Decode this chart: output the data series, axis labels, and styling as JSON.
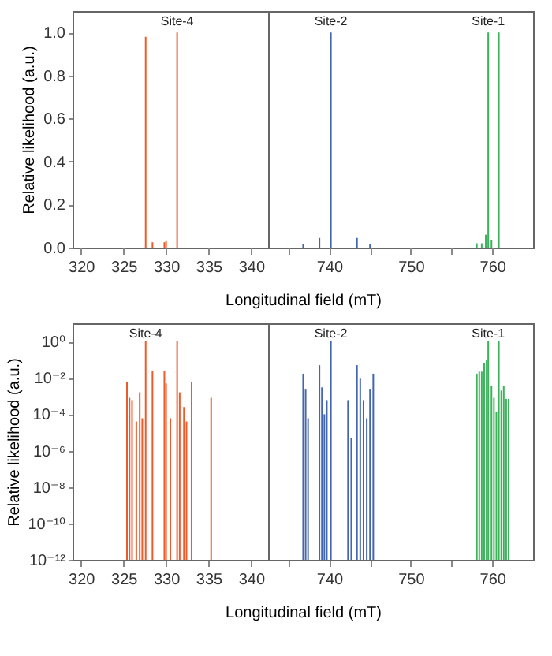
{
  "chart_data": [
    {
      "type": "bar",
      "ylabel": "Relative likelihood (a.u.)",
      "xlim": [
        319,
        342
      ],
      "xticks": [
        320,
        325,
        330,
        335,
        340
      ],
      "ylim": [
        0,
        1.1
      ],
      "yticks": [
        {
          "value": 0,
          "label": "0.0"
        },
        {
          "value": 0.2,
          "label": "0.2"
        },
        {
          "value": 0.4,
          "label": "0.4"
        },
        {
          "value": 0.6,
          "label": "0.6"
        },
        {
          "value": 0.8,
          "label": "0.8"
        },
        {
          "value": 1,
          "label": "1.0"
        }
      ],
      "grid": false,
      "series": [
        {
          "color": "#ee5b2b",
          "x": [
            327.6,
            328.4,
            329.8,
            330.0,
            331.3
          ],
          "values": [
            0.98,
            0.025,
            0.025,
            0.03,
            1.0
          ]
        }
      ],
      "annotations": [
        "Site-4"
      ]
    },
    {
      "type": "bar",
      "xlabel": "Longitudinal field (mT)",
      "xlim": [
        732.5,
        765
      ],
      "xticks": [
        {
          "value": 735,
          "label": null
        },
        740,
        {
          "value": 745,
          "label": null
        },
        750,
        {
          "value": 755,
          "label": null
        },
        760
      ],
      "ylim": [
        0,
        1.1
      ],
      "tick_labels": "x",
      "grid": false,
      "series": [
        {
          "color": "#4466b0",
          "x": [
            736.8,
            738.8,
            740.2,
            743.4,
            745.0
          ],
          "values": [
            0.017,
            0.045,
            1.0,
            0.045,
            0.015
          ]
        },
        {
          "color": "#3cb35a",
          "x": [
            758.1,
            758.7,
            759.2,
            759.5,
            759.9,
            760.8
          ],
          "values": [
            0.02,
            0.02,
            0.06,
            1.0,
            0.035,
            1.0
          ]
        }
      ],
      "annotations": [
        "Site-2",
        "Site-1"
      ]
    },
    {
      "type": "bar",
      "ylabel": "Relative likelihood (a.u.)",
      "log": true,
      "xlim": [
        319,
        342
      ],
      "xticks": [
        320,
        325,
        330,
        335,
        340
      ],
      "ylim": [
        1e-12,
        10
      ],
      "yticks": [
        {
          "value": 1e-12,
          "label": "10⁻¹²"
        },
        {
          "value": 1e-10,
          "label": "10⁻¹⁰"
        },
        {
          "value": 1e-08,
          "label": "10⁻⁸"
        },
        {
          "value": 1e-06,
          "label": "10⁻⁶"
        },
        {
          "value": 0.0001,
          "label": "10⁻⁴"
        },
        {
          "value": 0.01,
          "label": "10⁻²"
        },
        {
          "value": 1,
          "label": "10⁰"
        }
      ],
      "grid": false,
      "series": [
        {
          "color": "#ee5b2b",
          "x": [
            325.4,
            325.7,
            326.0,
            326.5,
            326.9,
            327.2,
            327.6,
            328.4,
            329.8,
            330.0,
            330.5,
            331.3,
            331.6,
            332.1,
            332.4,
            333.0,
            335.3
          ],
          "values": [
            0.006,
            0.0008,
            0.0006,
            4e-05,
            0.0016,
            6e-05,
            1,
            0.025,
            0.025,
            0.005,
            6e-05,
            1,
            0.0016,
            0.00025,
            4e-05,
            0.006,
            0.0008
          ]
        }
      ],
      "annotations": [
        "Site-4"
      ]
    },
    {
      "type": "bar",
      "xlabel": "Longitudinal field (mT)",
      "log": true,
      "xlim": [
        732.5,
        765
      ],
      "xticks": [
        {
          "value": 735,
          "label": null
        },
        740,
        {
          "value": 745,
          "label": null
        },
        750,
        {
          "value": 755,
          "label": null
        },
        760
      ],
      "ylim": [
        1e-12,
        10
      ],
      "tick_labels": "x",
      "grid": false,
      "series": [
        {
          "color": "#4466b0",
          "x": [
            736.8,
            737.1,
            737.4,
            738.8,
            739.1,
            739.4,
            739.7,
            740.2,
            742.3,
            742.7,
            743.4,
            743.8,
            744.2,
            744.6,
            745.0,
            745.4
          ],
          "values": [
            0.017,
            0.0025,
            6e-05,
            0.05,
            0.003,
            0.0001,
            0.0006,
            1,
            0.0006,
            5e-06,
            0.05,
            0.009,
            0.0006,
            6e-05,
            0.0025,
            0.017
          ]
        },
        {
          "color": "#3cb35a",
          "x": [
            758.1,
            758.4,
            758.7,
            759.0,
            759.3,
            759.5,
            759.9,
            760.2,
            760.5,
            760.8,
            761.1,
            761.4,
            761.7,
            762.0
          ],
          "values": [
            0.017,
            0.022,
            0.022,
            0.063,
            0.1,
            1,
            0.0035,
            0.0008,
            0.00013,
            1,
            0.002,
            0.0035,
            0.0007,
            0.0007
          ]
        }
      ],
      "annotations": [
        "Site-2",
        "Site-1"
      ]
    }
  ]
}
